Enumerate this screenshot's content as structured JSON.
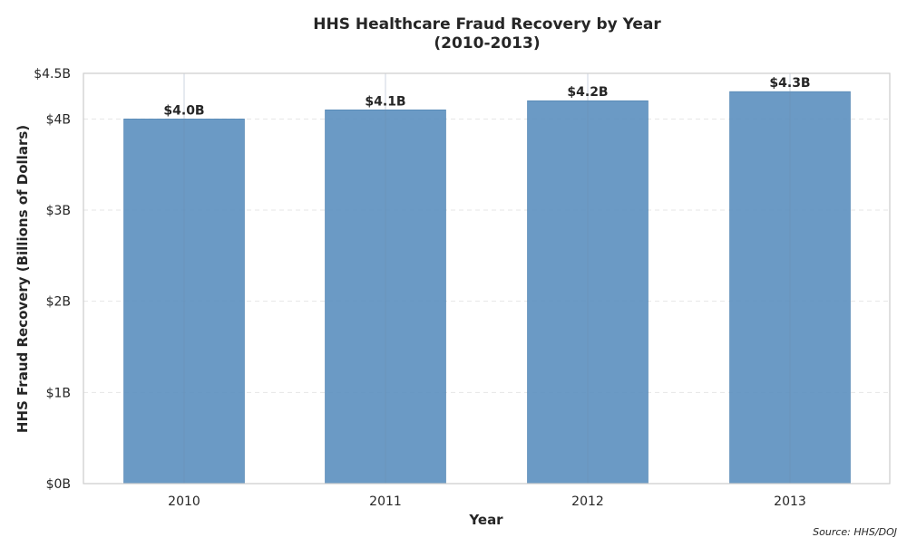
{
  "chart_data": {
    "type": "bar",
    "title": "HHS Healthcare Fraud Recovery by Year",
    "subtitle": "(2010-2013)",
    "xlabel": "Year",
    "ylabel": "HHS Fraud Recovery (Billions of Dollars)",
    "categories": [
      "2010",
      "2011",
      "2012",
      "2013"
    ],
    "values": [
      4.0,
      4.1,
      4.2,
      4.3
    ],
    "data_labels": [
      "$4.0B",
      "$4.1B",
      "$4.2B",
      "$4.3B"
    ],
    "ylim": [
      0,
      4.5
    ],
    "yticks": [
      {
        "value": 0,
        "label": "$0B"
      },
      {
        "value": 1,
        "label": "$1B"
      },
      {
        "value": 2,
        "label": "$2B"
      },
      {
        "value": 3,
        "label": "$3B"
      },
      {
        "value": 4,
        "label": "$4B"
      },
      {
        "value": 4.5,
        "label": "$4.5B"
      }
    ],
    "grid": true,
    "bar_color": "#5b8fbf",
    "source": "Source: HHS/DOJ"
  }
}
